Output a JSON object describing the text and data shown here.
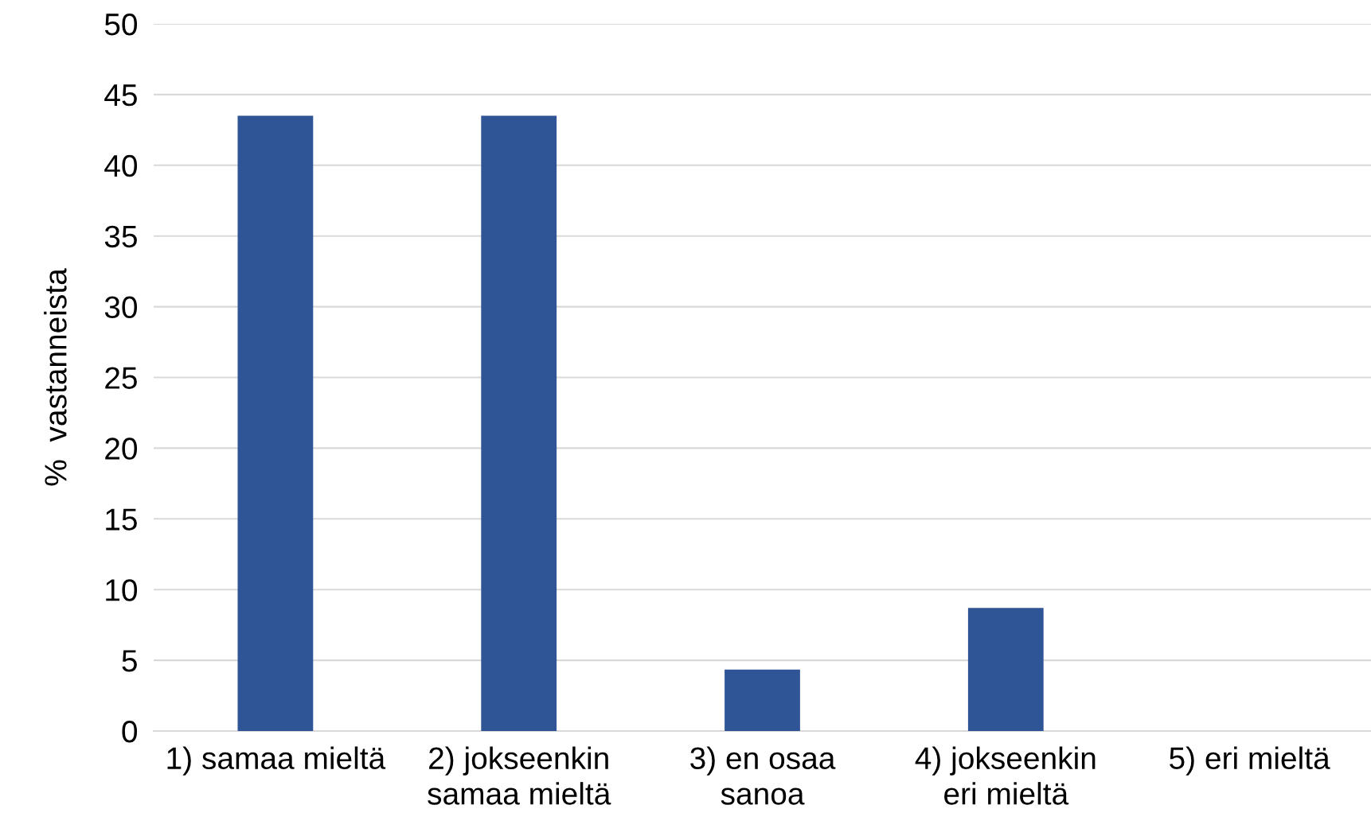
{
  "chart_data": {
    "type": "bar",
    "ylabel": "%  vastanneista",
    "categories": [
      "1) samaa mieltä",
      "2) jokseenkin\nsamaa mieltä",
      "3) en osaa\nsanoa",
      "4) jokseenkin\neri mieltä",
      "5) eri mieltä"
    ],
    "values": [
      43.5,
      43.5,
      4.35,
      8.7,
      0
    ],
    "color": "#2f5597",
    "ylim": [
      0,
      50
    ],
    "yticks": [
      0,
      5,
      10,
      15,
      20,
      25,
      30,
      35,
      40,
      45,
      50
    ],
    "grid": "y",
    "legend": false
  }
}
